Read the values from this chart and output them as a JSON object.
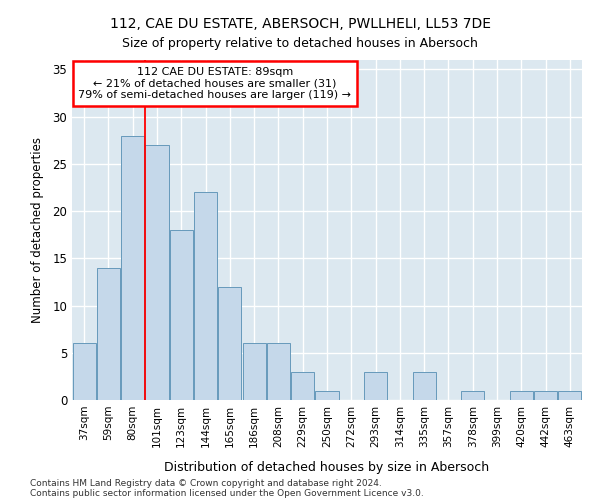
{
  "title1": "112, CAE DU ESTATE, ABERSOCH, PWLLHELI, LL53 7DE",
  "title2": "Size of property relative to detached houses in Abersoch",
  "xlabel": "Distribution of detached houses by size in Abersoch",
  "ylabel": "Number of detached properties",
  "bar_values": [
    6,
    14,
    28,
    27,
    18,
    22,
    12,
    6,
    6,
    3,
    1,
    0,
    3,
    0,
    3,
    0,
    1,
    0,
    1,
    1,
    1
  ],
  "bar_labels": [
    "37sqm",
    "59sqm",
    "80sqm",
    "101sqm",
    "123sqm",
    "144sqm",
    "165sqm",
    "186sqm",
    "208sqm",
    "229sqm",
    "250sqm",
    "272sqm",
    "293sqm",
    "314sqm",
    "335sqm",
    "357sqm",
    "378sqm",
    "399sqm",
    "420sqm",
    "442sqm",
    "463sqm"
  ],
  "bar_color": "#c5d8ea",
  "bar_edge_color": "#6699bb",
  "background_color": "#dce8f0",
  "annotation_text": "112 CAE DU ESTATE: 89sqm\n← 21% of detached houses are smaller (31)\n79% of semi-detached houses are larger (119) →",
  "vline_index": 2.5,
  "annotation_box_color": "white",
  "annotation_box_edge": "red",
  "footer1": "Contains HM Land Registry data © Crown copyright and database right 2024.",
  "footer2": "Contains public sector information licensed under the Open Government Licence v3.0.",
  "ylim": [
    0,
    36
  ],
  "yticks": [
    0,
    5,
    10,
    15,
    20,
    25,
    30,
    35
  ]
}
